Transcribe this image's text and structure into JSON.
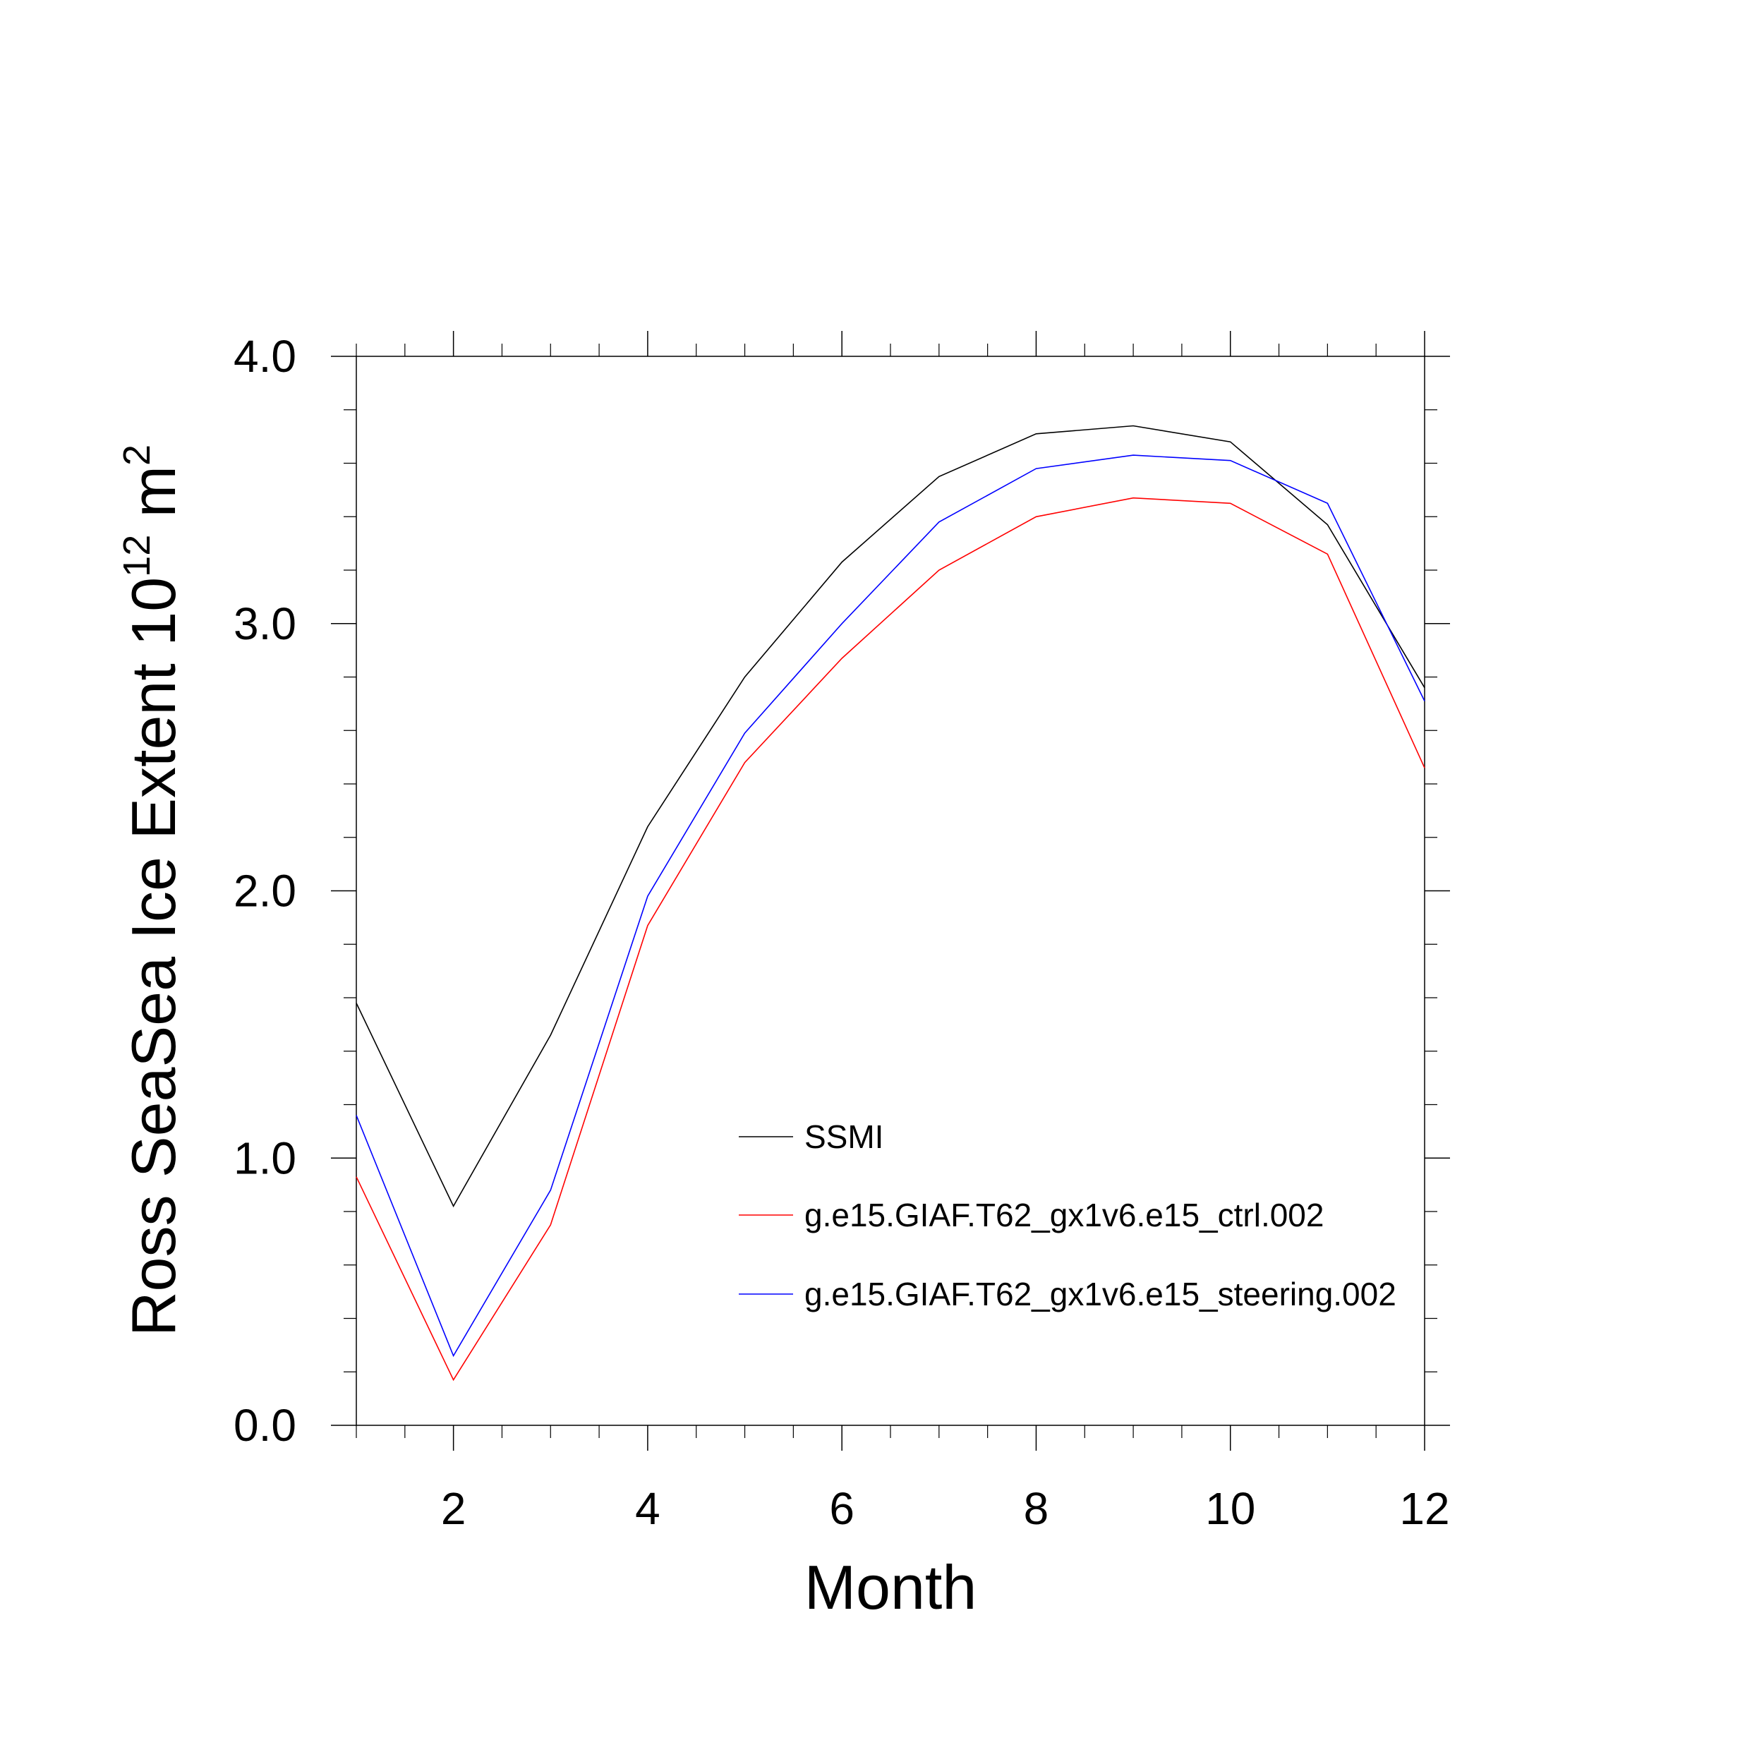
{
  "chart_data": {
    "type": "line",
    "xlabel": "Month",
    "ylabel": {
      "text": "Ross SeaSea Ice Extent 10",
      "exponent": "12",
      "unit": " m",
      "unit_exponent": "2"
    },
    "xlim": [
      1,
      12
    ],
    "ylim": [
      0,
      4
    ],
    "x": [
      1,
      2,
      3,
      4,
      5,
      6,
      7,
      8,
      9,
      10,
      11,
      12
    ],
    "xticks": [
      2,
      4,
      6,
      8,
      10,
      12
    ],
    "yticks": [
      "0.0",
      "1.0",
      "2.0",
      "3.0",
      "4.0"
    ],
    "grid": false,
    "legend_placement": "center-right",
    "series": [
      {
        "name": "SSMI",
        "color": "#000000",
        "values": [
          1.58,
          0.82,
          1.46,
          2.24,
          2.8,
          3.23,
          3.55,
          3.71,
          3.74,
          3.68,
          3.37,
          2.76
        ]
      },
      {
        "name": "g.e15.GIAF.T62_gx1v6.e15_ctrl.002",
        "color": "#ff0000",
        "values": [
          0.93,
          0.17,
          0.75,
          1.87,
          2.48,
          2.87,
          3.2,
          3.4,
          3.47,
          3.45,
          3.26,
          2.46
        ]
      },
      {
        "name": "g.e15.GIAF.T62_gx1v6.e15_steering.002",
        "color": "#0000ff",
        "values": [
          1.16,
          0.26,
          0.88,
          1.98,
          2.59,
          3.0,
          3.38,
          3.58,
          3.63,
          3.61,
          3.45,
          2.71
        ]
      }
    ]
  }
}
